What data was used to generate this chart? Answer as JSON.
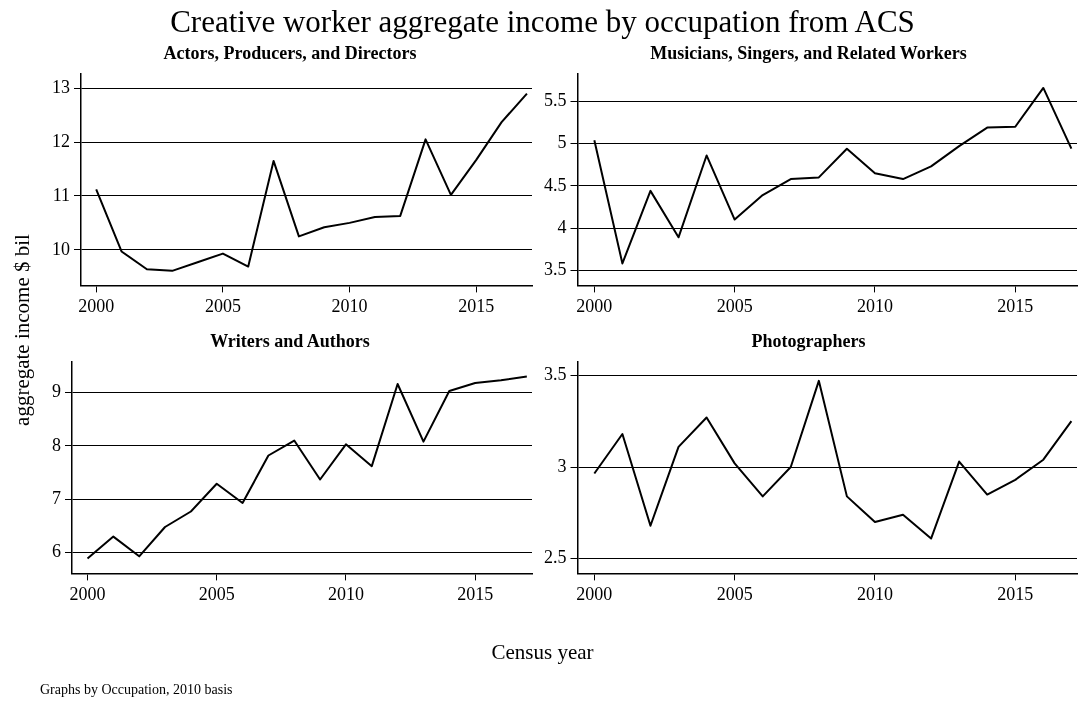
{
  "chart_data": [
    {
      "type": "line",
      "title": "Creative worker aggregate income by occupation from ACS",
      "subtitle": "Actors, Producers, and Directors",
      "xlabel": "Census year",
      "ylabel": "aggregate income $ bil",
      "annotations": [
        "Graphs by Occupation, 2010 basis"
      ],
      "x": [
        2000,
        2001,
        2002,
        2003,
        2004,
        2005,
        2006,
        2007,
        2008,
        2009,
        2010,
        2011,
        2012,
        2013,
        2014,
        2015,
        2016,
        2017
      ],
      "values": [
        11.12,
        9.97,
        9.64,
        9.61,
        9.77,
        9.93,
        9.69,
        11.65,
        10.25,
        10.42,
        10.5,
        10.61,
        10.63,
        12.05,
        11.02,
        11.67,
        12.37,
        12.9
      ],
      "color": "#000000",
      "xlim": [
        1999.4,
        2017.2
      ],
      "xticks": [
        2000,
        2005,
        2010,
        2015
      ],
      "ylim": [
        9.34,
        13.27
      ],
      "yticks": [
        10,
        11,
        12,
        13
      ],
      "grid": "y",
      "marker": "none",
      "line_style": "solid"
    },
    {
      "type": "line",
      "subtitle": "Musicians, Singers, and Related Workers",
      "x": [
        2000,
        2001,
        2002,
        2003,
        2004,
        2005,
        2006,
        2007,
        2008,
        2009,
        2010,
        2011,
        2012,
        2013,
        2014,
        2015,
        2016,
        2017
      ],
      "values": [
        5.04,
        3.58,
        4.44,
        3.89,
        4.86,
        4.1,
        4.39,
        4.58,
        4.6,
        4.94,
        4.65,
        4.58,
        4.73,
        4.97,
        5.19,
        5.2,
        5.66,
        4.94
      ],
      "color": "#000000",
      "xlim": [
        1999.4,
        2017.2
      ],
      "xticks": [
        2000,
        2005,
        2010,
        2015
      ],
      "ylim": [
        3.32,
        5.83
      ],
      "yticks": [
        3.5,
        4,
        4.5,
        5,
        5.5
      ],
      "grid": "y",
      "marker": "none",
      "line_style": "solid"
    },
    {
      "type": "line",
      "subtitle": "Writers and Authors",
      "x": [
        2000,
        2001,
        2002,
        2003,
        2004,
        2005,
        2006,
        2007,
        2008,
        2009,
        2010,
        2011,
        2012,
        2013,
        2014,
        2015,
        2016,
        2017
      ],
      "values": [
        5.89,
        6.3,
        5.93,
        6.48,
        6.77,
        7.29,
        6.93,
        7.82,
        8.1,
        7.37,
        8.03,
        7.62,
        9.16,
        8.08,
        9.03,
        9.18,
        9.23,
        9.3
      ],
      "color": "#000000",
      "xlim": [
        1999.4,
        2017.2
      ],
      "xticks": [
        2000,
        2005,
        2010,
        2015
      ],
      "ylim": [
        5.61,
        9.58
      ],
      "yticks": [
        6,
        7,
        8,
        9
      ],
      "grid": "y",
      "marker": "none",
      "line_style": "solid"
    },
    {
      "type": "line",
      "subtitle": "Photographers",
      "x": [
        2000,
        2001,
        2002,
        2003,
        2004,
        2005,
        2006,
        2007,
        2008,
        2009,
        2010,
        2011,
        2012,
        2013,
        2014,
        2015,
        2016,
        2017
      ],
      "values": [
        2.965,
        3.18,
        2.68,
        3.11,
        3.27,
        3.02,
        2.84,
        3.0,
        3.47,
        2.84,
        2.7,
        2.74,
        2.61,
        3.03,
        2.85,
        2.93,
        3.04,
        3.25
      ],
      "color": "#000000",
      "xlim": [
        1999.4,
        2017.2
      ],
      "xticks": [
        2000,
        2005,
        2010,
        2015
      ],
      "ylim": [
        2.42,
        3.575
      ],
      "yticks": [
        2.5,
        3,
        3.5
      ],
      "grid": "y",
      "marker": "none",
      "line_style": "solid"
    }
  ]
}
